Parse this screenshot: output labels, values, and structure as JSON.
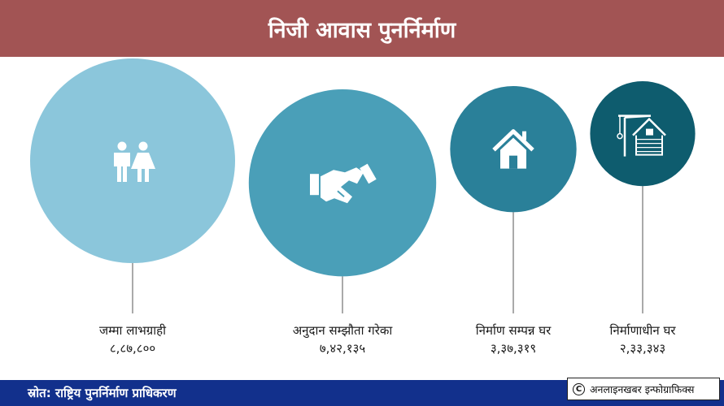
{
  "title": "निजी आवास पुनर्निर्माण",
  "source": "स्रोत: राष्ट्रिय पुनर्निर्माण प्राधिकरण",
  "credit": "अनलाइनखबर इन्फोग्राफिक्स",
  "icons": [
    "people-icon",
    "handshake-icon",
    "house-icon",
    "construction-icon"
  ],
  "colors": [
    "#8bc6db",
    "#4a9fb8",
    "#2a8099",
    "#0e5c6e"
  ],
  "chart_data": {
    "type": "bubble",
    "title": "निजी आवास पुनर्निर्माण",
    "categories": [
      "जम्मा लाभग्राही",
      "अनुदान सम्झौता गरेका",
      "निर्माण सम्पन्न घर",
      "निर्माणाधीन घर"
    ],
    "values": [
      887800,
      742135,
      337319,
      233343
    ],
    "value_labels": [
      "८,८७,८००",
      "७,४२,१३५",
      "३,३७,३१९",
      "२,३३,३४३"
    ]
  }
}
